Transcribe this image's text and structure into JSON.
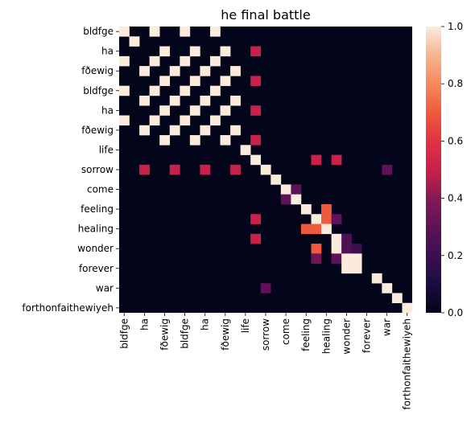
{
  "chart_data": {
    "type": "heatmap",
    "title": "he final battle",
    "xlabel": "",
    "ylabel": "",
    "size": 29,
    "row_tick_labels": [
      "bldfge",
      "ha",
      "fðewig",
      "bldfge",
      "ha",
      "fðewig",
      "life",
      "sorrow",
      "come",
      "feeling",
      "healing",
      "wonder",
      "forever",
      "war",
      "forthonfaithewiyeh"
    ],
    "col_tick_labels": [
      "bldfge",
      "ha",
      "fðewig",
      "bldfge",
      "ha",
      "fðewig",
      "life",
      "sorrow",
      "come",
      "feeling",
      "healing",
      "wonder",
      "forever",
      "war",
      "forthonfaithewiyeh"
    ],
    "tick_every": 2,
    "vmin": 0.0,
    "vmax": 1.0,
    "colorbar_ticks": [
      "0.0",
      "0.2",
      "0.4",
      "0.6",
      "0.8",
      "1.0"
    ],
    "colormap": "rocket",
    "cells": [
      [
        0,
        0,
        1.0
      ],
      [
        0,
        3,
        1.0
      ],
      [
        0,
        6,
        1.0
      ],
      [
        0,
        9,
        1.0
      ],
      [
        1,
        1,
        1.0
      ],
      [
        2,
        4,
        1.0
      ],
      [
        2,
        7,
        1.0
      ],
      [
        2,
        10,
        1.0
      ],
      [
        2,
        13,
        0.5
      ],
      [
        3,
        0,
        1.0
      ],
      [
        3,
        3,
        1.0
      ],
      [
        3,
        6,
        1.0
      ],
      [
        3,
        9,
        1.0
      ],
      [
        4,
        2,
        1.0
      ],
      [
        4,
        5,
        1.0
      ],
      [
        4,
        8,
        1.0
      ],
      [
        4,
        11,
        1.0
      ],
      [
        5,
        4,
        1.0
      ],
      [
        5,
        7,
        1.0
      ],
      [
        5,
        10,
        1.0
      ],
      [
        5,
        13,
        0.5
      ],
      [
        6,
        0,
        1.0
      ],
      [
        6,
        3,
        1.0
      ],
      [
        6,
        6,
        1.0
      ],
      [
        6,
        9,
        1.0
      ],
      [
        7,
        2,
        1.0
      ],
      [
        7,
        5,
        1.0
      ],
      [
        7,
        8,
        1.0
      ],
      [
        7,
        11,
        1.0
      ],
      [
        8,
        4,
        1.0
      ],
      [
        8,
        7,
        1.0
      ],
      [
        8,
        10,
        1.0
      ],
      [
        8,
        13,
        0.5
      ],
      [
        9,
        0,
        1.0
      ],
      [
        9,
        3,
        1.0
      ],
      [
        9,
        6,
        1.0
      ],
      [
        9,
        9,
        1.0
      ],
      [
        10,
        2,
        1.0
      ],
      [
        10,
        5,
        1.0
      ],
      [
        10,
        8,
        1.0
      ],
      [
        10,
        11,
        1.0
      ],
      [
        11,
        4,
        1.0
      ],
      [
        11,
        7,
        1.0
      ],
      [
        11,
        10,
        1.0
      ],
      [
        11,
        13,
        0.5
      ],
      [
        12,
        12,
        1.0
      ],
      [
        13,
        13,
        1.0
      ],
      [
        13,
        19,
        0.5
      ],
      [
        13,
        21,
        0.5
      ],
      [
        14,
        2,
        0.5
      ],
      [
        14,
        5,
        0.5
      ],
      [
        14,
        8,
        0.5
      ],
      [
        14,
        11,
        0.5
      ],
      [
        14,
        14,
        1.0
      ],
      [
        14,
        26,
        0.3
      ],
      [
        15,
        15,
        1.0
      ],
      [
        16,
        16,
        1.0
      ],
      [
        16,
        17,
        0.3
      ],
      [
        17,
        16,
        0.3
      ],
      [
        17,
        17,
        1.0
      ],
      [
        18,
        18,
        1.0
      ],
      [
        18,
        20,
        0.7
      ],
      [
        19,
        13,
        0.5
      ],
      [
        19,
        19,
        1.0
      ],
      [
        19,
        20,
        0.7
      ],
      [
        19,
        21,
        0.3
      ],
      [
        20,
        18,
        0.7
      ],
      [
        20,
        19,
        0.7
      ],
      [
        20,
        20,
        1.0
      ],
      [
        21,
        13,
        0.5
      ],
      [
        21,
        21,
        1.0
      ],
      [
        21,
        22,
        0.25
      ],
      [
        22,
        19,
        0.7
      ],
      [
        22,
        21,
        1.0
      ],
      [
        22,
        22,
        0.25
      ],
      [
        22,
        23,
        0.2
      ],
      [
        23,
        19,
        0.35
      ],
      [
        23,
        21,
        0.3
      ],
      [
        23,
        22,
        1.0
      ],
      [
        23,
        23,
        1.0
      ],
      [
        24,
        22,
        1.0
      ],
      [
        24,
        23,
        1.0
      ],
      [
        25,
        25,
        1.0
      ],
      [
        26,
        14,
        0.3
      ],
      [
        26,
        26,
        1.0
      ],
      [
        27,
        27,
        1.0
      ],
      [
        28,
        28,
        1.0
      ]
    ]
  }
}
